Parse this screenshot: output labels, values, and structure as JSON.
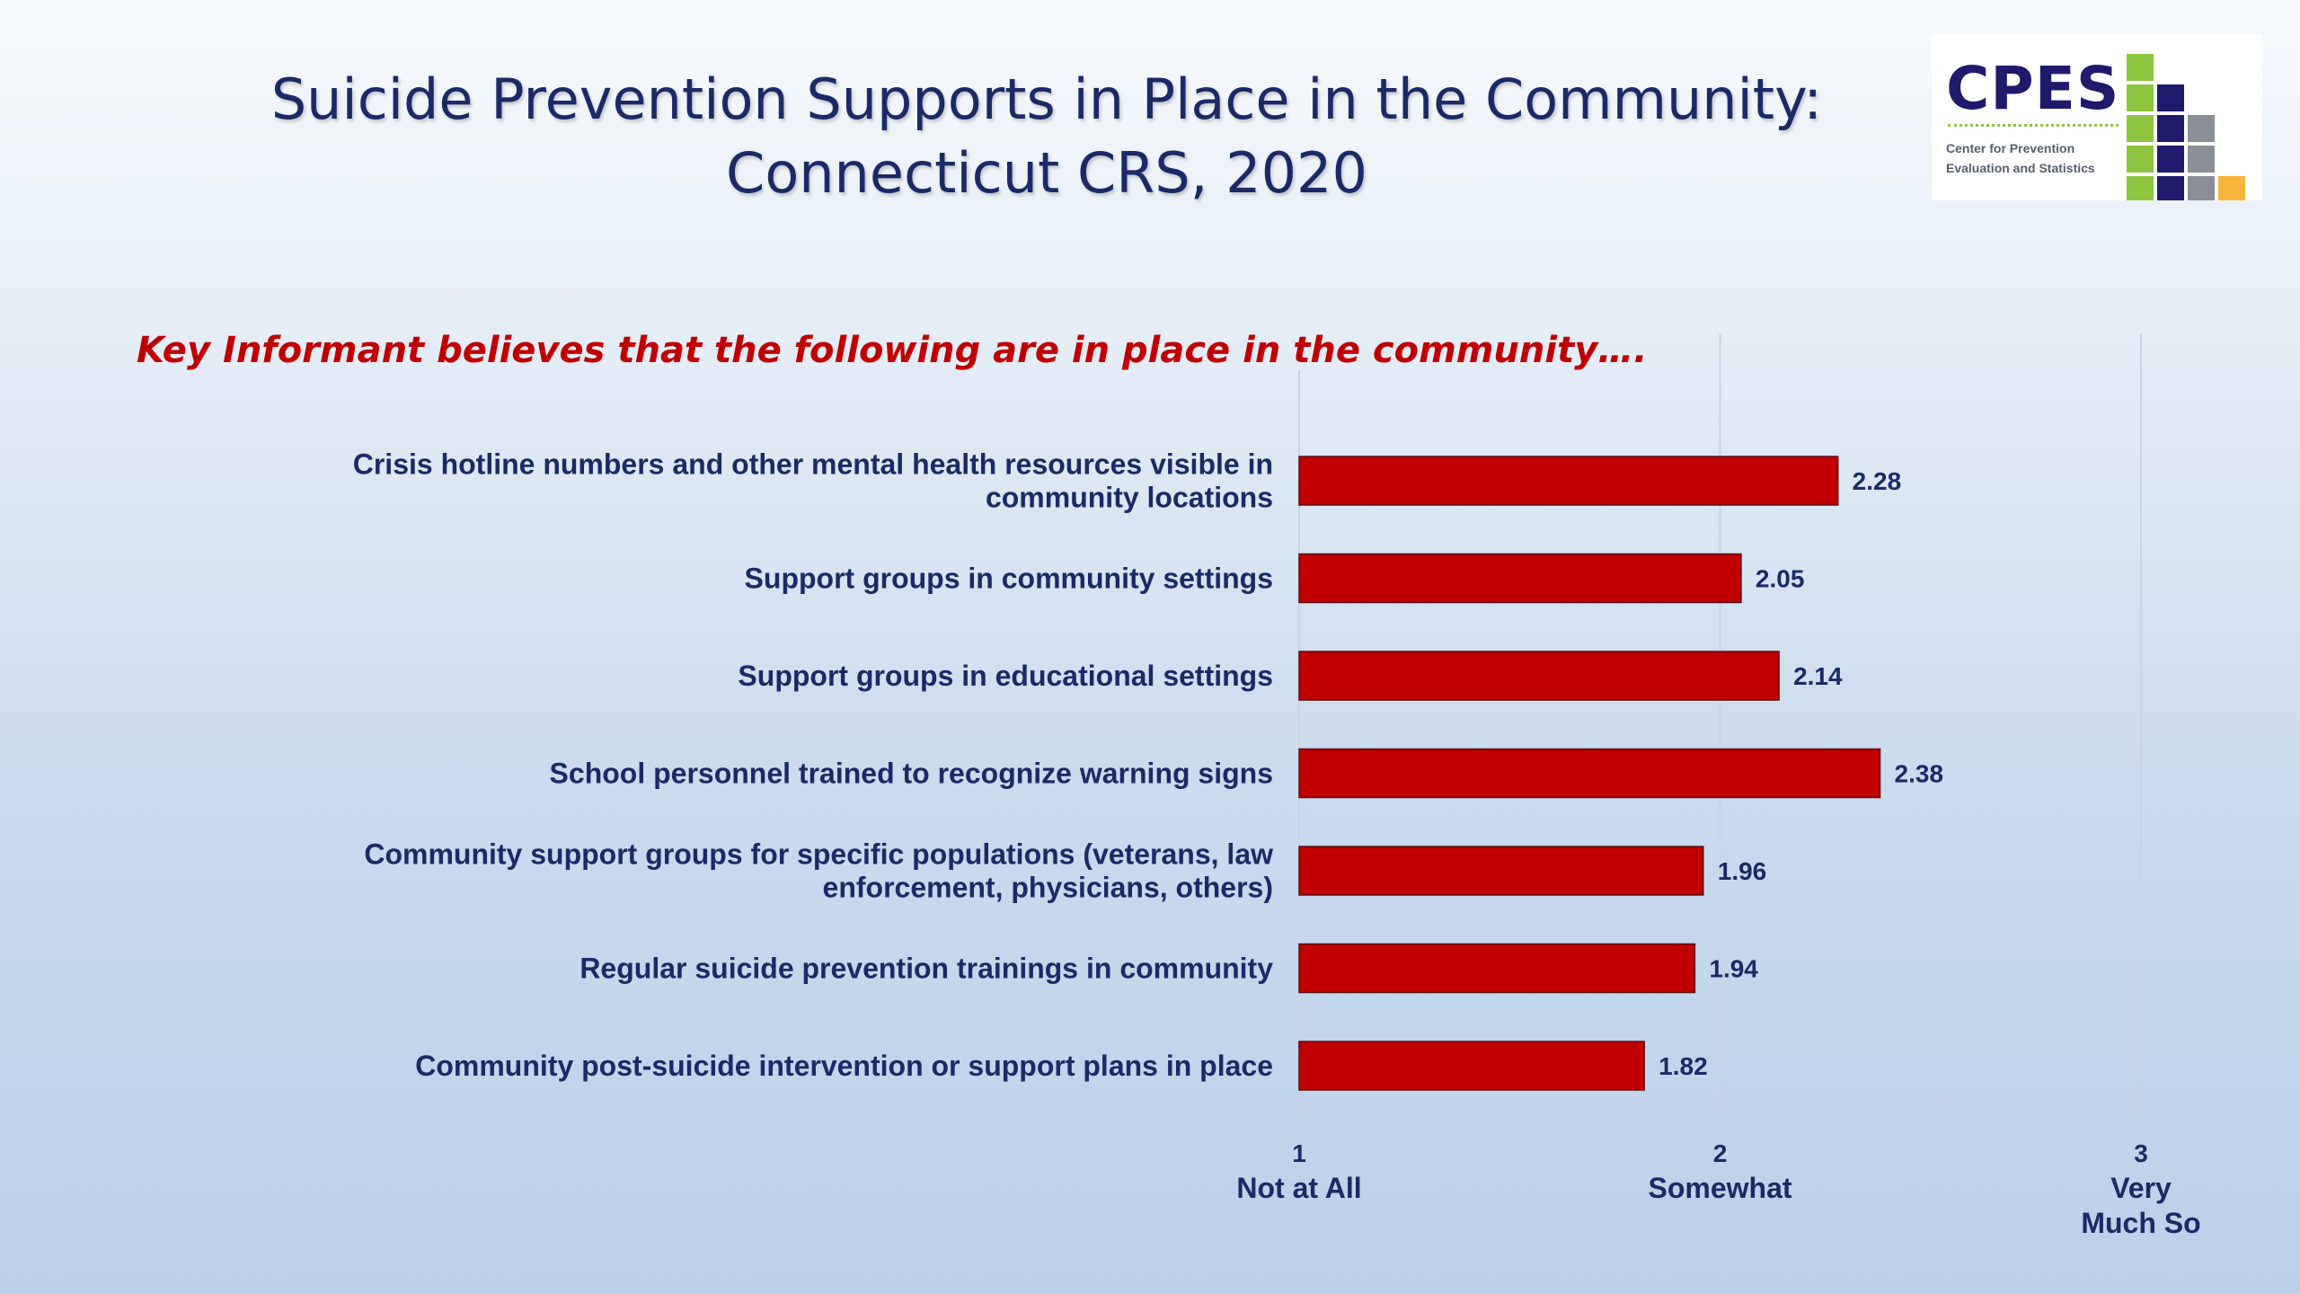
{
  "slide": {
    "title_line1": "Suicide Prevention Supports in Place in the Community:",
    "title_line2": "Connecticut CRS, 2020",
    "subtitle": "Key Informant believes that the following are in place in the community…."
  },
  "logo": {
    "name": "CPES",
    "subtitle_line1": "Center for Prevention",
    "subtitle_line2": "Evaluation and Statistics",
    "colors": {
      "green": "#8cc63f",
      "navy": "#1f1a6b",
      "gray": "#8a8f96",
      "orange": "#f7b53c"
    }
  },
  "chart_data": {
    "type": "bar",
    "orientation": "horizontal",
    "categories": [
      [
        "Crisis hotline numbers and other mental health resources visible in",
        "community locations"
      ],
      [
        "Support groups in community settings"
      ],
      [
        "Support groups in educational settings"
      ],
      [
        "School personnel trained to recognize warning signs"
      ],
      [
        "Community support groups for specific populations (veterans, law",
        "enforcement, physicians, others)"
      ],
      [
        "Regular suicide prevention trainings in community"
      ],
      [
        "Community post-suicide intervention or support plans in place"
      ]
    ],
    "values": [
      2.28,
      2.05,
      2.14,
      2.38,
      1.96,
      1.94,
      1.82
    ],
    "value_labels": [
      "2.28",
      "2.05",
      "2.14",
      "2.38",
      "1.96",
      "1.94",
      "1.82"
    ],
    "xlim": [
      1,
      3
    ],
    "ticks": [
      {
        "value": 1,
        "label": "1",
        "caption": [
          "Not at All"
        ]
      },
      {
        "value": 2,
        "label": "2",
        "caption": [
          "Somewhat"
        ]
      },
      {
        "value": 3,
        "label": "3",
        "caption": [
          "Very",
          "Much So"
        ]
      }
    ],
    "grid": true,
    "bar_color": "#c00000",
    "text_color": "#1a2a66"
  }
}
